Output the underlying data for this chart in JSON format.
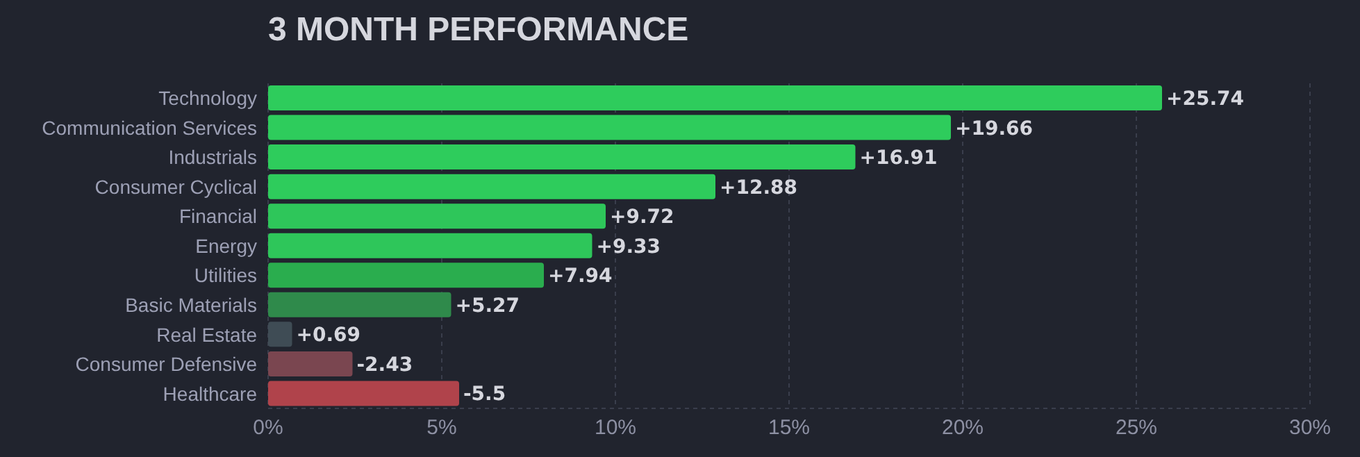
{
  "chart_data": {
    "type": "bar",
    "orientation": "horizontal",
    "title": "3 MONTH PERFORMANCE",
    "categories": [
      "Technology",
      "Communication Services",
      "Industrials",
      "Consumer Cyclical",
      "Financial",
      "Energy",
      "Utilities",
      "Basic Materials",
      "Real Estate",
      "Consumer Defensive",
      "Healthcare"
    ],
    "values": [
      25.74,
      19.66,
      16.91,
      12.88,
      9.72,
      9.33,
      7.94,
      5.27,
      0.69,
      -2.43,
      -5.5
    ],
    "base": [
      0,
      0,
      0,
      0,
      0,
      0,
      0,
      0,
      0,
      2.43,
      5.5
    ],
    "value_labels": [
      "+25.74",
      "+19.66",
      "+16.91",
      "+12.88",
      "+9.72",
      "+9.33",
      "+7.94",
      "+5.27",
      "+0.69",
      "-2.43",
      "-5.5"
    ],
    "colors": [
      "#2ecc5c",
      "#2ecc5c",
      "#2ecc5c",
      "#2ecc5c",
      "#2ec65a",
      "#2ec65a",
      "#2aad4e",
      "#2f8a4b",
      "#3f4c55",
      "#7a4650",
      "#b0434b"
    ],
    "xlim": [
      0,
      30
    ],
    "xticks": [
      {
        "value": 0,
        "label": "0%"
      },
      {
        "value": 5,
        "label": "5%"
      },
      {
        "value": 10,
        "label": "10%"
      },
      {
        "value": 15,
        "label": "15%"
      },
      {
        "value": 20,
        "label": "20%"
      },
      {
        "value": 25,
        "label": "25%"
      },
      {
        "value": 30,
        "label": "30%"
      }
    ],
    "grid": "x"
  }
}
